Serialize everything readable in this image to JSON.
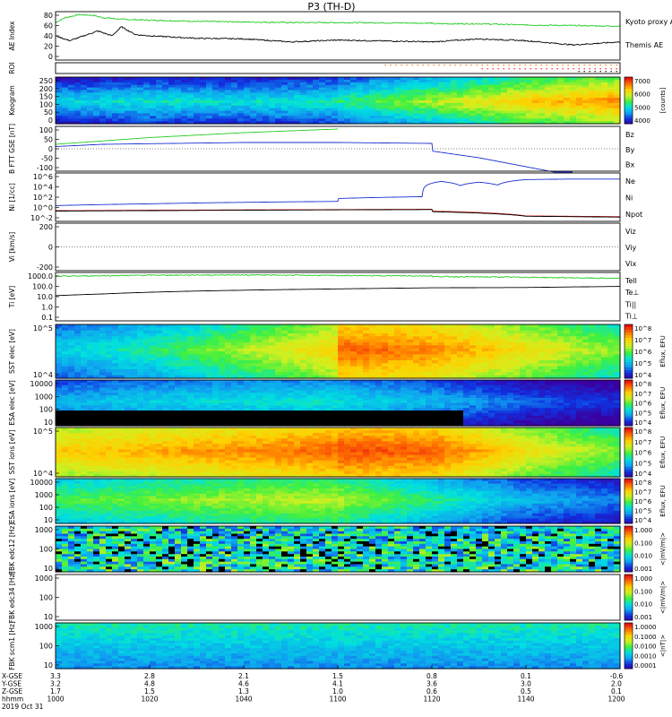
{
  "title": "P3 (TH-D)",
  "colors": {
    "black": "#000000",
    "green": "#22cc22",
    "red": "#dd2222",
    "blue": "#1a2fd0",
    "orange": "#ff7700",
    "rainbow": [
      "#3a00a0",
      "#1030e0",
      "#10a0f0",
      "#00e0e0",
      "#40f040",
      "#d0f020",
      "#ffd000",
      "#ff7000",
      "#e81010"
    ]
  },
  "chart_data": [
    {
      "type": "line",
      "id": "ae",
      "ylabel": "AE Index",
      "ylim": [
        0,
        80
      ],
      "yticks": [
        "80",
        "60",
        "40",
        "20",
        "0"
      ],
      "series": [
        {
          "name": "Kyoto proxy AE",
          "color": "#22cc22",
          "x": [
            1000,
            1002,
            1005,
            1008,
            1010,
            1015,
            1020,
            1030,
            1040,
            1050,
            1060,
            1080,
            1100,
            1120,
            1130,
            1140,
            1150,
            1160,
            1170,
            1180,
            1190,
            1200
          ],
          "values": [
            62,
            70,
            75,
            74,
            70,
            67,
            66,
            64,
            63,
            62,
            62,
            61,
            60,
            60,
            60,
            58,
            57,
            56,
            55,
            55,
            55,
            55
          ]
        },
        {
          "name": "Themis AE",
          "color": "#000000",
          "x": [
            1000,
            1003,
            1006,
            1009,
            1012,
            1014,
            1017,
            1020,
            1025,
            1030,
            1040,
            1050,
            1060,
            1080,
            1100,
            1120,
            1130,
            1140,
            1150,
            1160,
            1165,
            1170,
            1175,
            1180,
            1185,
            1190,
            1195,
            1200
          ],
          "values": [
            40,
            32,
            40,
            48,
            40,
            55,
            42,
            40,
            38,
            36,
            35,
            30,
            33,
            30,
            28,
            30,
            35,
            32,
            25,
            30,
            35,
            22,
            28,
            20,
            22,
            18,
            20,
            22
          ]
        }
      ]
    },
    {
      "type": "scatter",
      "id": "roi",
      "ylabel": "ROI",
      "note": "region-of-interest flags",
      "x_start": 1070,
      "x_end": 1200
    },
    {
      "type": "heatmap",
      "id": "keogram",
      "ylabel": "Keogram",
      "ylim": [
        0,
        250
      ],
      "yticks": [
        "250",
        "200",
        "150",
        "100",
        "50",
        "0"
      ],
      "colorbar": {
        "label": "[counts]",
        "ticks": [
          "7000",
          "6000",
          "5000",
          "4000"
        ]
      },
      "x": [
        1000,
        1020,
        1040,
        1060,
        1080,
        1100,
        1120,
        1140,
        1160,
        1180,
        1200
      ],
      "level": [
        0.35,
        0.4,
        0.38,
        0.42,
        0.4,
        0.45,
        0.6,
        0.75,
        0.85,
        0.9,
        0.88
      ]
    },
    {
      "type": "line",
      "id": "bfield",
      "ylabel": "B FTT GSE [nT]",
      "ylim": [
        -100,
        100
      ],
      "yticks": [
        "100",
        "50",
        "0",
        "-50",
        "-100"
      ],
      "series": [
        {
          "name": "Bz",
          "color": "#dd2222",
          "x": [],
          "values": []
        },
        {
          "name": "By",
          "color": "#22cc22",
          "x": [
            1000,
            1020,
            1040,
            1060,
            1080,
            1100
          ],
          "values": [
            20,
            50,
            72,
            88,
            100,
            120
          ]
        },
        {
          "name": "Bx",
          "color": "#1a2fd0",
          "x": [
            1000,
            1010,
            1040,
            1060,
            1080,
            1100,
            1110,
            1120,
            1130,
            1140,
            1150
          ],
          "values": [
            10,
            20,
            28,
            28,
            24,
            16,
            8,
            -10,
            -40,
            -80,
            -120
          ]
        }
      ]
    },
    {
      "type": "line",
      "id": "density",
      "ylabel": "Ni [1/cc]",
      "scale": "log",
      "ylim": [
        0.01,
        1000000
      ],
      "yticks": [
        "10^6",
        "10^4",
        "10^2",
        "10^0",
        "10^-2"
      ],
      "series": [
        {
          "name": "Ne",
          "color": "#dd2222",
          "x": [
            1000,
            1040,
            1080,
            1100,
            1120,
            1140,
            1160,
            1200
          ],
          "values": [
            0.6,
            0.8,
            1.0,
            0.9,
            0.5,
            0.08,
            0.06,
            0.05
          ]
        },
        {
          "name": "Ni",
          "color": "#000000",
          "x": [
            1000,
            1040,
            1080,
            1100,
            1120,
            1140,
            1160,
            1200
          ],
          "values": [
            0.5,
            0.7,
            0.9,
            0.8,
            0.4,
            0.07,
            0.05,
            0.04
          ]
        },
        {
          "name": "Npot",
          "color": "#1a2fd0",
          "x": [
            1000,
            1020,
            1060,
            1100,
            1118,
            1122,
            1126,
            1130,
            1134,
            1140,
            1150,
            1200
          ],
          "values": [
            4,
            8,
            20,
            60,
            120,
            40000,
            8000,
            30000,
            10000,
            80000,
            100000,
            100000
          ]
        }
      ]
    },
    {
      "type": "line",
      "id": "velocity",
      "ylabel": "Vi [km/s]",
      "ylim": [
        -400,
        400
      ],
      "yticks": [
        "200",
        "0",
        "-200"
      ],
      "series": [
        {
          "name": "Viz",
          "color": "#dd2222",
          "x": [],
          "values": []
        },
        {
          "name": "Viy",
          "color": "#22cc22",
          "x": [],
          "values": []
        },
        {
          "name": "Vix",
          "color": "#1a2fd0",
          "x": [],
          "values": []
        }
      ]
    },
    {
      "type": "line",
      "id": "temp",
      "ylabel": "Ti [eV]",
      "scale": "log",
      "ylim": [
        0.05,
        5000
      ],
      "yticks": [
        "1000.0",
        "100.0",
        "10.0",
        "1.0",
        "0.1"
      ],
      "series": [
        {
          "name": "Tell",
          "color": "#000000",
          "x": [
            1000,
            1010,
            1030,
            1060,
            1080,
            1100,
            1120,
            1140,
            1160,
            1180,
            1200
          ],
          "values": [
            20,
            30,
            60,
            100,
            130,
            150,
            130,
            140,
            180,
            230,
            260
          ]
        },
        {
          "name": "Te⊥",
          "color": "#dd2222",
          "x": [],
          "values": []
        },
        {
          "name": "Ti||",
          "color": "#22cc22",
          "x": [
            1000,
            1020,
            1040,
            1060,
            1080,
            1100,
            1120,
            1140,
            1160,
            1170,
            1180,
            1190,
            1200
          ],
          "values": [
            2000,
            2600,
            2800,
            2400,
            2200,
            2100,
            1900,
            1600,
            1200,
            700,
            600,
            900,
            1300
          ]
        },
        {
          "name": "Ti⊥",
          "color": "#1a2fd0",
          "x": [],
          "values": []
        }
      ]
    },
    {
      "type": "heatmap",
      "id": "sst_e",
      "ylabel": "SST elec [eV]",
      "scale": "log",
      "yticks": [
        "10^5",
        "10^4"
      ],
      "colorbar": {
        "label": "Eflux, EFU",
        "ticks": [
          "10^8",
          "10^7",
          "10^6",
          "10^5",
          "10^4"
        ]
      },
      "x": [
        1000,
        1020,
        1040,
        1060,
        1080,
        1100,
        1120,
        1140,
        1160,
        1180,
        1200
      ],
      "level": [
        0.35,
        0.45,
        0.6,
        0.75,
        0.85,
        0.9,
        0.85,
        0.7,
        0.55,
        0.45,
        0.4
      ]
    },
    {
      "type": "heatmap",
      "id": "esa_e",
      "ylabel": "ESA elec [eV]",
      "scale": "log",
      "yticks": [
        "10000",
        "1000",
        "100",
        "10"
      ],
      "colorbar": {
        "label": "Eflux, EFU",
        "ticks": [
          "10^8",
          "10^7",
          "10^6",
          "10^5",
          "10^4"
        ]
      },
      "x": [
        1000,
        1020,
        1040,
        1060,
        1080,
        1100,
        1120,
        1140,
        1160,
        1180,
        1200
      ],
      "level": [
        0.3,
        0.35,
        0.38,
        0.4,
        0.4,
        0.38,
        0.3,
        0.18,
        0.12,
        0.1,
        0.1
      ]
    },
    {
      "type": "heatmap",
      "id": "sst_i",
      "ylabel": "SST ions [eV]",
      "scale": "log",
      "yticks": [
        "10^5",
        "10^4"
      ],
      "colorbar": {
        "label": "Eflux, EFU",
        "ticks": [
          "10^8",
          "10^7",
          "10^6",
          "10^5",
          "10^4"
        ]
      },
      "x": [
        1000,
        1020,
        1040,
        1060,
        1080,
        1100,
        1120,
        1140,
        1160,
        1180,
        1200
      ],
      "level": [
        0.75,
        0.8,
        0.85,
        0.9,
        0.92,
        0.93,
        0.9,
        0.7,
        0.55,
        0.45,
        0.4
      ]
    },
    {
      "type": "heatmap",
      "id": "esa_i",
      "ylabel": "ESA ions [eV]",
      "scale": "log",
      "yticks": [
        "10000",
        "1000",
        "100",
        "10"
      ],
      "colorbar": {
        "label": "Eflux, EFU",
        "ticks": [
          "10^8",
          "10^7",
          "10^6",
          "10^5",
          "10^4"
        ]
      },
      "x": [
        1000,
        1020,
        1040,
        1060,
        1080,
        1100,
        1120,
        1140,
        1160,
        1180,
        1200
      ],
      "level": [
        0.5,
        0.55,
        0.6,
        0.62,
        0.62,
        0.6,
        0.45,
        0.3,
        0.22,
        0.2,
        0.2
      ]
    },
    {
      "type": "heatmap",
      "id": "fbk_e12",
      "ylabel": "FBK edc12 [Hz]",
      "scale": "log",
      "yticks": [
        "1000",
        "100",
        "10"
      ],
      "colorbar": {
        "label": "<|mV/m|>",
        "ticks": [
          "1.000",
          "0.100",
          "0.010",
          "0.001"
        ]
      }
    },
    {
      "type": "heatmap",
      "id": "fbk_e34",
      "ylabel": "FBK edc34 [Hz]",
      "scale": "log",
      "yticks": [
        "1000",
        "100",
        "10"
      ],
      "colorbar": {
        "label": "<|mV/m|>",
        "ticks": [
          "1.000",
          "0.100",
          "0.010",
          "0.001"
        ]
      }
    },
    {
      "type": "heatmap",
      "id": "fbk_b",
      "ylabel": "FBK scm1 [Hz]",
      "scale": "log",
      "yticks": [
        "1000",
        "100",
        "10"
      ],
      "colorbar": {
        "label": "<|nT|>",
        "ticks": [
          "1.0000",
          "0.1000",
          "0.0100",
          "0.0010",
          "0.0001"
        ]
      }
    }
  ],
  "legends": {
    "ae": [
      "Kyoto proxy AE",
      "Themis AE"
    ],
    "bfield": [
      "Bz",
      "By",
      "Bx"
    ],
    "density": [
      "Ne",
      "Ni",
      "Npot"
    ],
    "velocity": [
      "Viz",
      "Viy",
      "Vix"
    ],
    "temp": [
      "Tell",
      "Te⊥",
      "Ti||",
      "Ti⊥"
    ]
  },
  "xaxis": {
    "row_labels": [
      "X-GSE",
      "Y-GSE",
      "Z-GSE",
      "hhmm",
      "2019 Oct 31"
    ],
    "x_values": [
      1000,
      1020,
      1040,
      1100,
      1120,
      1140,
      1200
    ],
    "columns": [
      [
        "3.3",
        "3.2",
        "1.7",
        "1000"
      ],
      [
        "2.8",
        "4.8",
        "1.5",
        "1020"
      ],
      [
        "2.1",
        "4.6",
        "1.3",
        "1040"
      ],
      [
        "1.5",
        "4.1",
        "1.0",
        "1100"
      ],
      [
        "0.8",
        "3.6",
        "0.6",
        "1120"
      ],
      [
        "0.1",
        "3.0",
        "0.5",
        "1140"
      ],
      [
        "-0.6",
        "2.0",
        "0.1",
        "1200"
      ]
    ]
  }
}
